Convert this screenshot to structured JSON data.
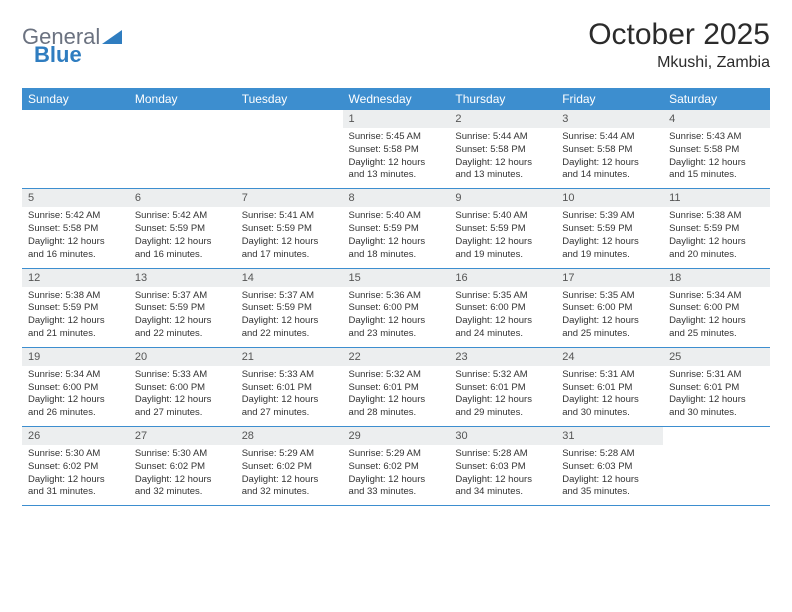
{
  "logo": {
    "text1": "General",
    "text2": "Blue"
  },
  "title": "October 2025",
  "location": "Mkushi, Zambia",
  "colors": {
    "header_bg": "#3d8ecf",
    "header_text": "#ffffff",
    "daynum_bg": "#eceeef",
    "rule": "#3d8ecf",
    "logo_gray": "#6b7280",
    "logo_blue": "#2f7dc0"
  },
  "days_of_week": [
    "Sunday",
    "Monday",
    "Tuesday",
    "Wednesday",
    "Thursday",
    "Friday",
    "Saturday"
  ],
  "weeks": [
    [
      {
        "n": "",
        "lines": []
      },
      {
        "n": "",
        "lines": []
      },
      {
        "n": "",
        "lines": []
      },
      {
        "n": "1",
        "lines": [
          "Sunrise: 5:45 AM",
          "Sunset: 5:58 PM",
          "Daylight: 12 hours and 13 minutes."
        ]
      },
      {
        "n": "2",
        "lines": [
          "Sunrise: 5:44 AM",
          "Sunset: 5:58 PM",
          "Daylight: 12 hours and 13 minutes."
        ]
      },
      {
        "n": "3",
        "lines": [
          "Sunrise: 5:44 AM",
          "Sunset: 5:58 PM",
          "Daylight: 12 hours and 14 minutes."
        ]
      },
      {
        "n": "4",
        "lines": [
          "Sunrise: 5:43 AM",
          "Sunset: 5:58 PM",
          "Daylight: 12 hours and 15 minutes."
        ]
      }
    ],
    [
      {
        "n": "5",
        "lines": [
          "Sunrise: 5:42 AM",
          "Sunset: 5:58 PM",
          "Daylight: 12 hours and 16 minutes."
        ]
      },
      {
        "n": "6",
        "lines": [
          "Sunrise: 5:42 AM",
          "Sunset: 5:59 PM",
          "Daylight: 12 hours and 16 minutes."
        ]
      },
      {
        "n": "7",
        "lines": [
          "Sunrise: 5:41 AM",
          "Sunset: 5:59 PM",
          "Daylight: 12 hours and 17 minutes."
        ]
      },
      {
        "n": "8",
        "lines": [
          "Sunrise: 5:40 AM",
          "Sunset: 5:59 PM",
          "Daylight: 12 hours and 18 minutes."
        ]
      },
      {
        "n": "9",
        "lines": [
          "Sunrise: 5:40 AM",
          "Sunset: 5:59 PM",
          "Daylight: 12 hours and 19 minutes."
        ]
      },
      {
        "n": "10",
        "lines": [
          "Sunrise: 5:39 AM",
          "Sunset: 5:59 PM",
          "Daylight: 12 hours and 19 minutes."
        ]
      },
      {
        "n": "11",
        "lines": [
          "Sunrise: 5:38 AM",
          "Sunset: 5:59 PM",
          "Daylight: 12 hours and 20 minutes."
        ]
      }
    ],
    [
      {
        "n": "12",
        "lines": [
          "Sunrise: 5:38 AM",
          "Sunset: 5:59 PM",
          "Daylight: 12 hours and 21 minutes."
        ]
      },
      {
        "n": "13",
        "lines": [
          "Sunrise: 5:37 AM",
          "Sunset: 5:59 PM",
          "Daylight: 12 hours and 22 minutes."
        ]
      },
      {
        "n": "14",
        "lines": [
          "Sunrise: 5:37 AM",
          "Sunset: 5:59 PM",
          "Daylight: 12 hours and 22 minutes."
        ]
      },
      {
        "n": "15",
        "lines": [
          "Sunrise: 5:36 AM",
          "Sunset: 6:00 PM",
          "Daylight: 12 hours and 23 minutes."
        ]
      },
      {
        "n": "16",
        "lines": [
          "Sunrise: 5:35 AM",
          "Sunset: 6:00 PM",
          "Daylight: 12 hours and 24 minutes."
        ]
      },
      {
        "n": "17",
        "lines": [
          "Sunrise: 5:35 AM",
          "Sunset: 6:00 PM",
          "Daylight: 12 hours and 25 minutes."
        ]
      },
      {
        "n": "18",
        "lines": [
          "Sunrise: 5:34 AM",
          "Sunset: 6:00 PM",
          "Daylight: 12 hours and 25 minutes."
        ]
      }
    ],
    [
      {
        "n": "19",
        "lines": [
          "Sunrise: 5:34 AM",
          "Sunset: 6:00 PM",
          "Daylight: 12 hours and 26 minutes."
        ]
      },
      {
        "n": "20",
        "lines": [
          "Sunrise: 5:33 AM",
          "Sunset: 6:00 PM",
          "Daylight: 12 hours and 27 minutes."
        ]
      },
      {
        "n": "21",
        "lines": [
          "Sunrise: 5:33 AM",
          "Sunset: 6:01 PM",
          "Daylight: 12 hours and 27 minutes."
        ]
      },
      {
        "n": "22",
        "lines": [
          "Sunrise: 5:32 AM",
          "Sunset: 6:01 PM",
          "Daylight: 12 hours and 28 minutes."
        ]
      },
      {
        "n": "23",
        "lines": [
          "Sunrise: 5:32 AM",
          "Sunset: 6:01 PM",
          "Daylight: 12 hours and 29 minutes."
        ]
      },
      {
        "n": "24",
        "lines": [
          "Sunrise: 5:31 AM",
          "Sunset: 6:01 PM",
          "Daylight: 12 hours and 30 minutes."
        ]
      },
      {
        "n": "25",
        "lines": [
          "Sunrise: 5:31 AM",
          "Sunset: 6:01 PM",
          "Daylight: 12 hours and 30 minutes."
        ]
      }
    ],
    [
      {
        "n": "26",
        "lines": [
          "Sunrise: 5:30 AM",
          "Sunset: 6:02 PM",
          "Daylight: 12 hours and 31 minutes."
        ]
      },
      {
        "n": "27",
        "lines": [
          "Sunrise: 5:30 AM",
          "Sunset: 6:02 PM",
          "Daylight: 12 hours and 32 minutes."
        ]
      },
      {
        "n": "28",
        "lines": [
          "Sunrise: 5:29 AM",
          "Sunset: 6:02 PM",
          "Daylight: 12 hours and 32 minutes."
        ]
      },
      {
        "n": "29",
        "lines": [
          "Sunrise: 5:29 AM",
          "Sunset: 6:02 PM",
          "Daylight: 12 hours and 33 minutes."
        ]
      },
      {
        "n": "30",
        "lines": [
          "Sunrise: 5:28 AM",
          "Sunset: 6:03 PM",
          "Daylight: 12 hours and 34 minutes."
        ]
      },
      {
        "n": "31",
        "lines": [
          "Sunrise: 5:28 AM",
          "Sunset: 6:03 PM",
          "Daylight: 12 hours and 35 minutes."
        ]
      },
      {
        "n": "",
        "lines": []
      }
    ]
  ]
}
